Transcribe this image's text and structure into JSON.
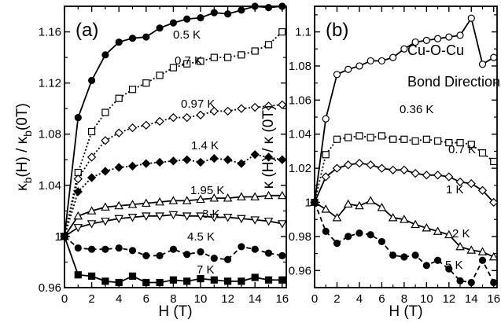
{
  "chart_data": [
    {
      "type": "line",
      "panel_label": "(a)",
      "xlabel": "H (T)",
      "ylabel_parts": {
        "kappa": "κ",
        "b": "b",
        "h": "(H) / ",
        "zero": "(0T)"
      },
      "xlim": [
        0,
        16.3
      ],
      "ylim": [
        0.96,
        1.18
      ],
      "xticks": [
        "0",
        "2",
        "4",
        "6",
        "8",
        "10",
        "12",
        "14",
        "16"
      ],
      "yticks": [
        "0.96",
        "1",
        "1.04",
        "1.08",
        "1.12",
        "1.16"
      ],
      "series": [
        {
          "name": "0.5 K",
          "marker": "circle",
          "fill": "filled",
          "line": "solid",
          "x": [
            0,
            1,
            2,
            3,
            4,
            5,
            6,
            7,
            8,
            9,
            10,
            11,
            12,
            13,
            14,
            15,
            16
          ],
          "y": [
            1.0,
            1.093,
            1.122,
            1.142,
            1.152,
            1.155,
            1.156,
            1.163,
            1.167,
            1.17,
            1.171,
            1.175,
            1.174,
            1.177,
            1.18,
            1.179,
            1.18
          ]
        },
        {
          "name": "0.7 K",
          "marker": "square",
          "fill": "open",
          "line": "dotted",
          "x": [
            0,
            1,
            2,
            3,
            4,
            5,
            6,
            7,
            8,
            9,
            10,
            11,
            12,
            13,
            14,
            15,
            16
          ],
          "y": [
            1.0,
            1.05,
            1.082,
            1.097,
            1.108,
            1.115,
            1.12,
            1.126,
            1.132,
            1.135,
            1.137,
            1.14,
            1.14,
            1.142,
            1.145,
            1.15,
            1.16
          ]
        },
        {
          "name": "0.97 K",
          "marker": "diamond",
          "fill": "open",
          "line": "dotted",
          "x": [
            0,
            1,
            2,
            3,
            4,
            5,
            6,
            7,
            8,
            9,
            10,
            11,
            12,
            13,
            14,
            15,
            16
          ],
          "y": [
            1.0,
            1.045,
            1.062,
            1.075,
            1.081,
            1.085,
            1.087,
            1.09,
            1.093,
            1.093,
            1.095,
            1.098,
            1.098,
            1.1,
            1.101,
            1.102,
            1.103
          ]
        },
        {
          "name": "1.4 K",
          "marker": "diamond",
          "fill": "filled",
          "line": "dotted",
          "x": [
            0,
            1,
            2,
            3,
            4,
            5,
            6,
            7,
            8,
            9,
            10,
            11,
            12,
            13,
            14,
            15,
            16
          ],
          "y": [
            1.0,
            1.035,
            1.046,
            1.051,
            1.054,
            1.055,
            1.057,
            1.058,
            1.059,
            1.06,
            1.058,
            1.061,
            1.06,
            1.057,
            1.064,
            1.062,
            1.06
          ]
        },
        {
          "name": "1.95 K",
          "marker": "triangle-up",
          "fill": "open",
          "line": "solid",
          "x": [
            0,
            1,
            2,
            3,
            4,
            5,
            6,
            7,
            8,
            9,
            10,
            11,
            12,
            13,
            14,
            15,
            16
          ],
          "y": [
            1.0,
            1.016,
            1.02,
            1.023,
            1.024,
            1.025,
            1.026,
            1.027,
            1.028,
            1.028,
            1.029,
            1.03,
            1.03,
            1.031,
            1.031,
            1.032,
            1.032
          ]
        },
        {
          "name": "3 K",
          "marker": "triangle-down",
          "fill": "open",
          "line": "solid",
          "x": [
            0,
            1,
            2,
            3,
            4,
            5,
            6,
            7,
            8,
            9,
            10,
            11,
            12,
            13,
            14,
            15,
            16
          ],
          "y": [
            1.0,
            1.007,
            1.01,
            1.012,
            1.014,
            1.015,
            1.016,
            1.016,
            1.017,
            1.016,
            1.016,
            1.015,
            1.015,
            1.014,
            1.013,
            1.012,
            1.01
          ]
        },
        {
          "name": "4.5 K",
          "marker": "circle",
          "fill": "filled",
          "line": "dashed",
          "x": [
            0,
            1,
            2,
            3,
            4,
            5,
            6,
            7,
            8,
            9,
            10,
            11,
            12,
            13,
            14,
            15,
            16
          ],
          "y": [
            1.0,
            0.991,
            0.99,
            0.99,
            0.991,
            0.989,
            0.985,
            0.985,
            0.99,
            0.986,
            0.988,
            0.983,
            0.982,
            0.992,
            0.99,
            0.987,
            0.985
          ]
        },
        {
          "name": "7 K",
          "marker": "square",
          "fill": "filled",
          "line": "solid",
          "x": [
            0,
            1,
            2,
            3,
            4,
            5,
            6,
            7,
            8,
            9,
            10,
            11,
            12,
            13,
            14,
            15,
            16
          ],
          "y": [
            1.0,
            0.97,
            0.969,
            0.965,
            0.964,
            0.969,
            0.964,
            0.964,
            0.966,
            0.965,
            0.967,
            0.966,
            0.965,
            0.965,
            0.968,
            0.966,
            0.966
          ]
        }
      ]
    },
    {
      "type": "line",
      "panel_label": "(b)",
      "xlabel": "H (T)",
      "ylabel_parts": {
        "kappa": "κ",
        "h": " (H) / ",
        "kappa2": "κ",
        "zero": " (0T)"
      },
      "xlim": [
        0,
        16.3
      ],
      "ylim": [
        0.95,
        1.115
      ],
      "xticks": [
        "0",
        "2",
        "4",
        "6",
        "8",
        "10",
        "12",
        "14",
        "16"
      ],
      "yticks": [
        "0.96",
        "0.98",
        "1",
        "1.02",
        "1.04",
        "1.06",
        "1.08",
        "1.1"
      ],
      "annotation": [
        "Cu-O-Cu",
        "Bond Direction"
      ],
      "series": [
        {
          "name": "0.36 K",
          "marker": "circle",
          "fill": "open",
          "line": "solid",
          "x": [
            0,
            1,
            2,
            3,
            4,
            5,
            6,
            7,
            8,
            9,
            10,
            11,
            12,
            13,
            14,
            15,
            16
          ],
          "y": [
            1.0,
            1.049,
            1.075,
            1.078,
            1.08,
            1.083,
            1.083,
            1.085,
            1.09,
            1.094,
            1.095,
            1.096,
            1.097,
            1.098,
            1.108,
            1.081,
            1.085
          ]
        },
        {
          "name": "0.7 K",
          "marker": "square",
          "fill": "open",
          "line": "dotted",
          "x": [
            0,
            1,
            2,
            3,
            4,
            5,
            6,
            7,
            8,
            9,
            10,
            11,
            12,
            13,
            14,
            15,
            16
          ],
          "y": [
            1.0,
            1.028,
            1.037,
            1.038,
            1.039,
            1.038,
            1.039,
            1.037,
            1.037,
            1.036,
            1.037,
            1.036,
            1.035,
            1.035,
            1.034,
            1.029,
            1.024
          ]
        },
        {
          "name": "1 K",
          "marker": "diamond",
          "fill": "open",
          "line": "solid",
          "x": [
            0,
            1,
            2,
            3,
            4,
            5,
            6,
            7,
            8,
            9,
            10,
            11,
            12,
            13,
            14,
            15,
            16
          ],
          "y": [
            1.0,
            1.015,
            1.02,
            1.022,
            1.023,
            1.022,
            1.02,
            1.019,
            1.019,
            1.017,
            1.016,
            1.016,
            1.015,
            1.012,
            1.011,
            1.007,
            1.0
          ]
        },
        {
          "name": "2 K",
          "marker": "triangle-up",
          "fill": "open",
          "line": "solid",
          "x": [
            0,
            1,
            2,
            3,
            4,
            5,
            6,
            7,
            8,
            9,
            10,
            11,
            12,
            13,
            14,
            15,
            16
          ],
          "y": [
            1.0,
            0.996,
            0.991,
            0.999,
            0.998,
            1.001,
            0.997,
            0.991,
            0.99,
            0.987,
            0.985,
            0.983,
            0.981,
            0.974,
            0.972,
            0.971,
            0.968
          ]
        },
        {
          "name": "5 K",
          "marker": "circle",
          "fill": "filled",
          "line": "dashed",
          "x": [
            0,
            1,
            2,
            3,
            4,
            5,
            6,
            7,
            8,
            9,
            10,
            11,
            12,
            13,
            14,
            15,
            16
          ],
          "y": [
            1.0,
            0.983,
            0.976,
            0.98,
            0.982,
            0.981,
            0.977,
            0.969,
            0.968,
            0.969,
            0.963,
            0.966,
            0.961,
            0.954,
            0.953,
            0.966,
            0.953
          ]
        }
      ]
    }
  ]
}
